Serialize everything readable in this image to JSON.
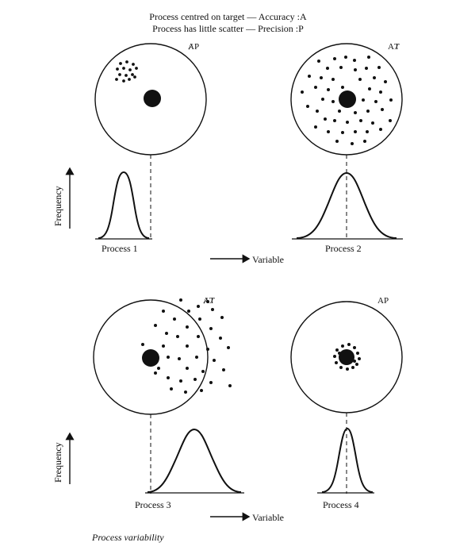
{
  "legend": {
    "line1_text": "Process centred on target",
    "line1_key": "Accuracy :A",
    "line2_text": "Process has little scatter",
    "line2_key": "Precision :P"
  },
  "axis": {
    "frequency_label": "Frequency",
    "variable_label": "Variable"
  },
  "panels": [
    {
      "name": "Process 1",
      "corner": "ȺP"
    },
    {
      "name": "Process 2",
      "corner": "AȾ"
    },
    {
      "name": "Process 3",
      "corner": "ȺȾ"
    },
    {
      "name": "Process 4",
      "corner": "AP"
    }
  ],
  "caption": "Process variability"
}
